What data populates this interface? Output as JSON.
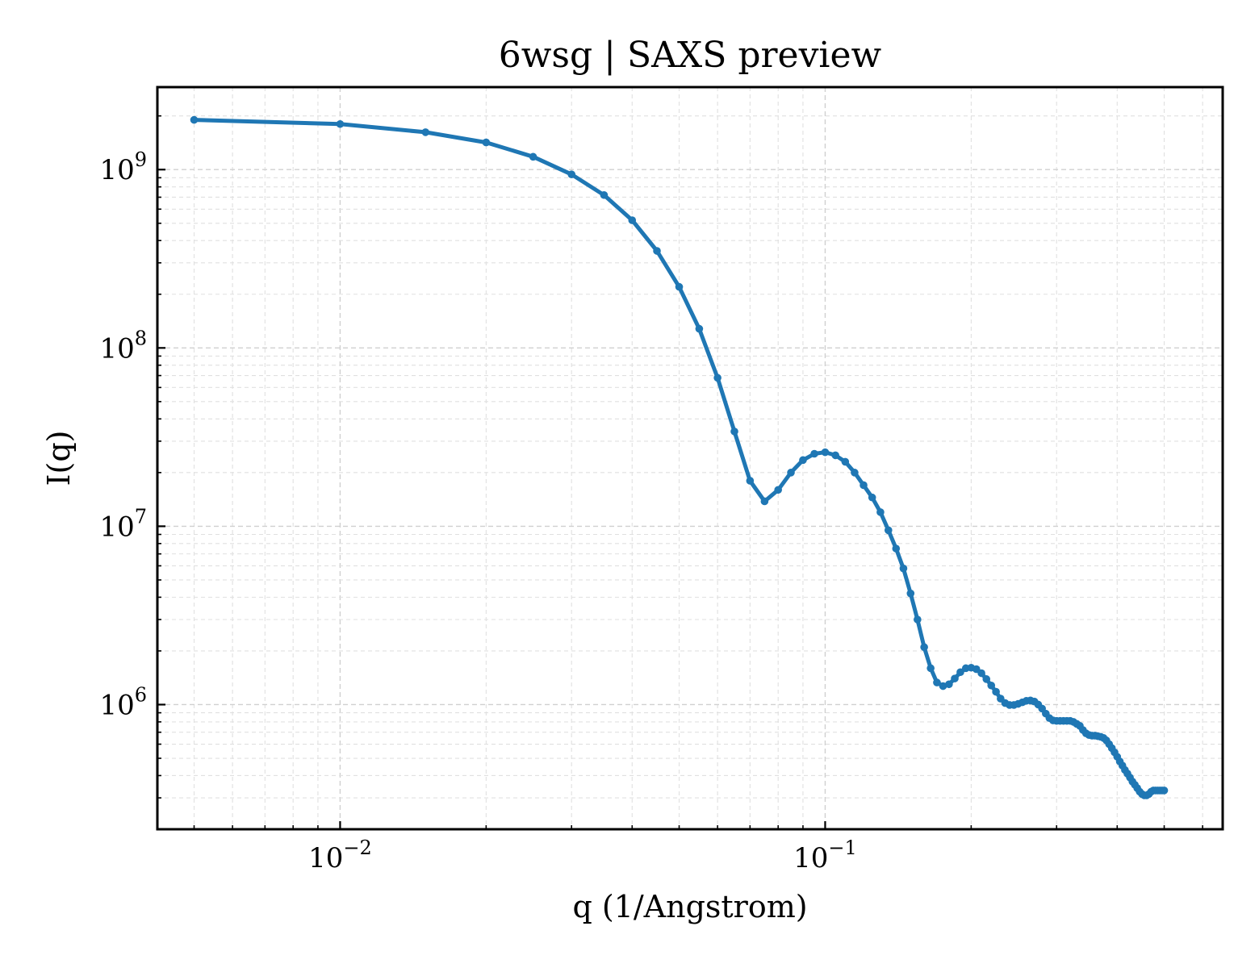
{
  "chart_data": {
    "type": "line",
    "title": "6wsg | SAXS preview",
    "xlabel": "q (1/Angstrom)",
    "ylabel": "I(q)",
    "xscale": "log",
    "yscale": "log",
    "xlim": [
      0.0042,
      0.66
    ],
    "ylim": [
      200000,
      2900000000
    ],
    "grid": true,
    "legend": "none",
    "color": "#1f77b4",
    "x_ticks": [
      {
        "base": "10",
        "exp": "−2",
        "value": 0.01
      },
      {
        "base": "10",
        "exp": "−1",
        "value": 0.1
      }
    ],
    "y_ticks": [
      {
        "base": "10",
        "exp": "6",
        "value": 1000000
      },
      {
        "base": "10",
        "exp": "7",
        "value": 10000000
      },
      {
        "base": "10",
        "exp": "8",
        "value": 100000000
      },
      {
        "base": "10",
        "exp": "9",
        "value": 1000000000
      }
    ],
    "series": [
      {
        "x": [
          0.005,
          0.01,
          0.015,
          0.02,
          0.025,
          0.03,
          0.035,
          0.04,
          0.045,
          0.05,
          0.055,
          0.06,
          0.065,
          0.07,
          0.075,
          0.08,
          0.085,
          0.09,
          0.095,
          0.1,
          0.105,
          0.11,
          0.115,
          0.12,
          0.125,
          0.13,
          0.135,
          0.14,
          0.145,
          0.15,
          0.155,
          0.16,
          0.165,
          0.17,
          0.175,
          0.18,
          0.185,
          0.19,
          0.195,
          0.2,
          0.205,
          0.21,
          0.215,
          0.22,
          0.225,
          0.23,
          0.235,
          0.24,
          0.245,
          0.25,
          0.255,
          0.26,
          0.265,
          0.27,
          0.275,
          0.28,
          0.285,
          0.29,
          0.295,
          0.3,
          0.305,
          0.31,
          0.315,
          0.32,
          0.325,
          0.33,
          0.335,
          0.34,
          0.345,
          0.35,
          0.355,
          0.36,
          0.365,
          0.37,
          0.375,
          0.38,
          0.385,
          0.39,
          0.395,
          0.4,
          0.405,
          0.41,
          0.415,
          0.42,
          0.425,
          0.43,
          0.435,
          0.44,
          0.445,
          0.45,
          0.455,
          0.46,
          0.465,
          0.47,
          0.475,
          0.48,
          0.485,
          0.49,
          0.495,
          0.5
        ],
        "y": [
          1900000000,
          1800000000,
          1620000000,
          1420000000,
          1180000000,
          940000000,
          720000000,
          520000000,
          350000000,
          220000000,
          128000000,
          68000000,
          34000000,
          18000000,
          13800000,
          16000000,
          20000000,
          23500000,
          25500000,
          26000000,
          25000000,
          23000000,
          20000000,
          17000000,
          14500000,
          12000000,
          9500000,
          7500000,
          5800000,
          4200000,
          3000000,
          2100000,
          1600000,
          1330000,
          1270000,
          1300000,
          1400000,
          1520000,
          1600000,
          1610000,
          1580000,
          1500000,
          1390000,
          1280000,
          1180000,
          1080000,
          1020000,
          995000,
          995000,
          1010000,
          1030000,
          1050000,
          1055000,
          1040000,
          1000000,
          950000,
          890000,
          840000,
          815000,
          810000,
          810000,
          810000,
          810000,
          810000,
          800000,
          780000,
          760000,
          720000,
          690000,
          675000,
          670000,
          670000,
          665000,
          660000,
          650000,
          630000,
          600000,
          570000,
          540000,
          510000,
          480000,
          455000,
          430000,
          410000,
          390000,
          370000,
          355000,
          340000,
          325000,
          315000,
          310000,
          310000,
          315000,
          325000,
          330000,
          330000,
          330000,
          330000,
          330000,
          330000
        ]
      }
    ]
  }
}
